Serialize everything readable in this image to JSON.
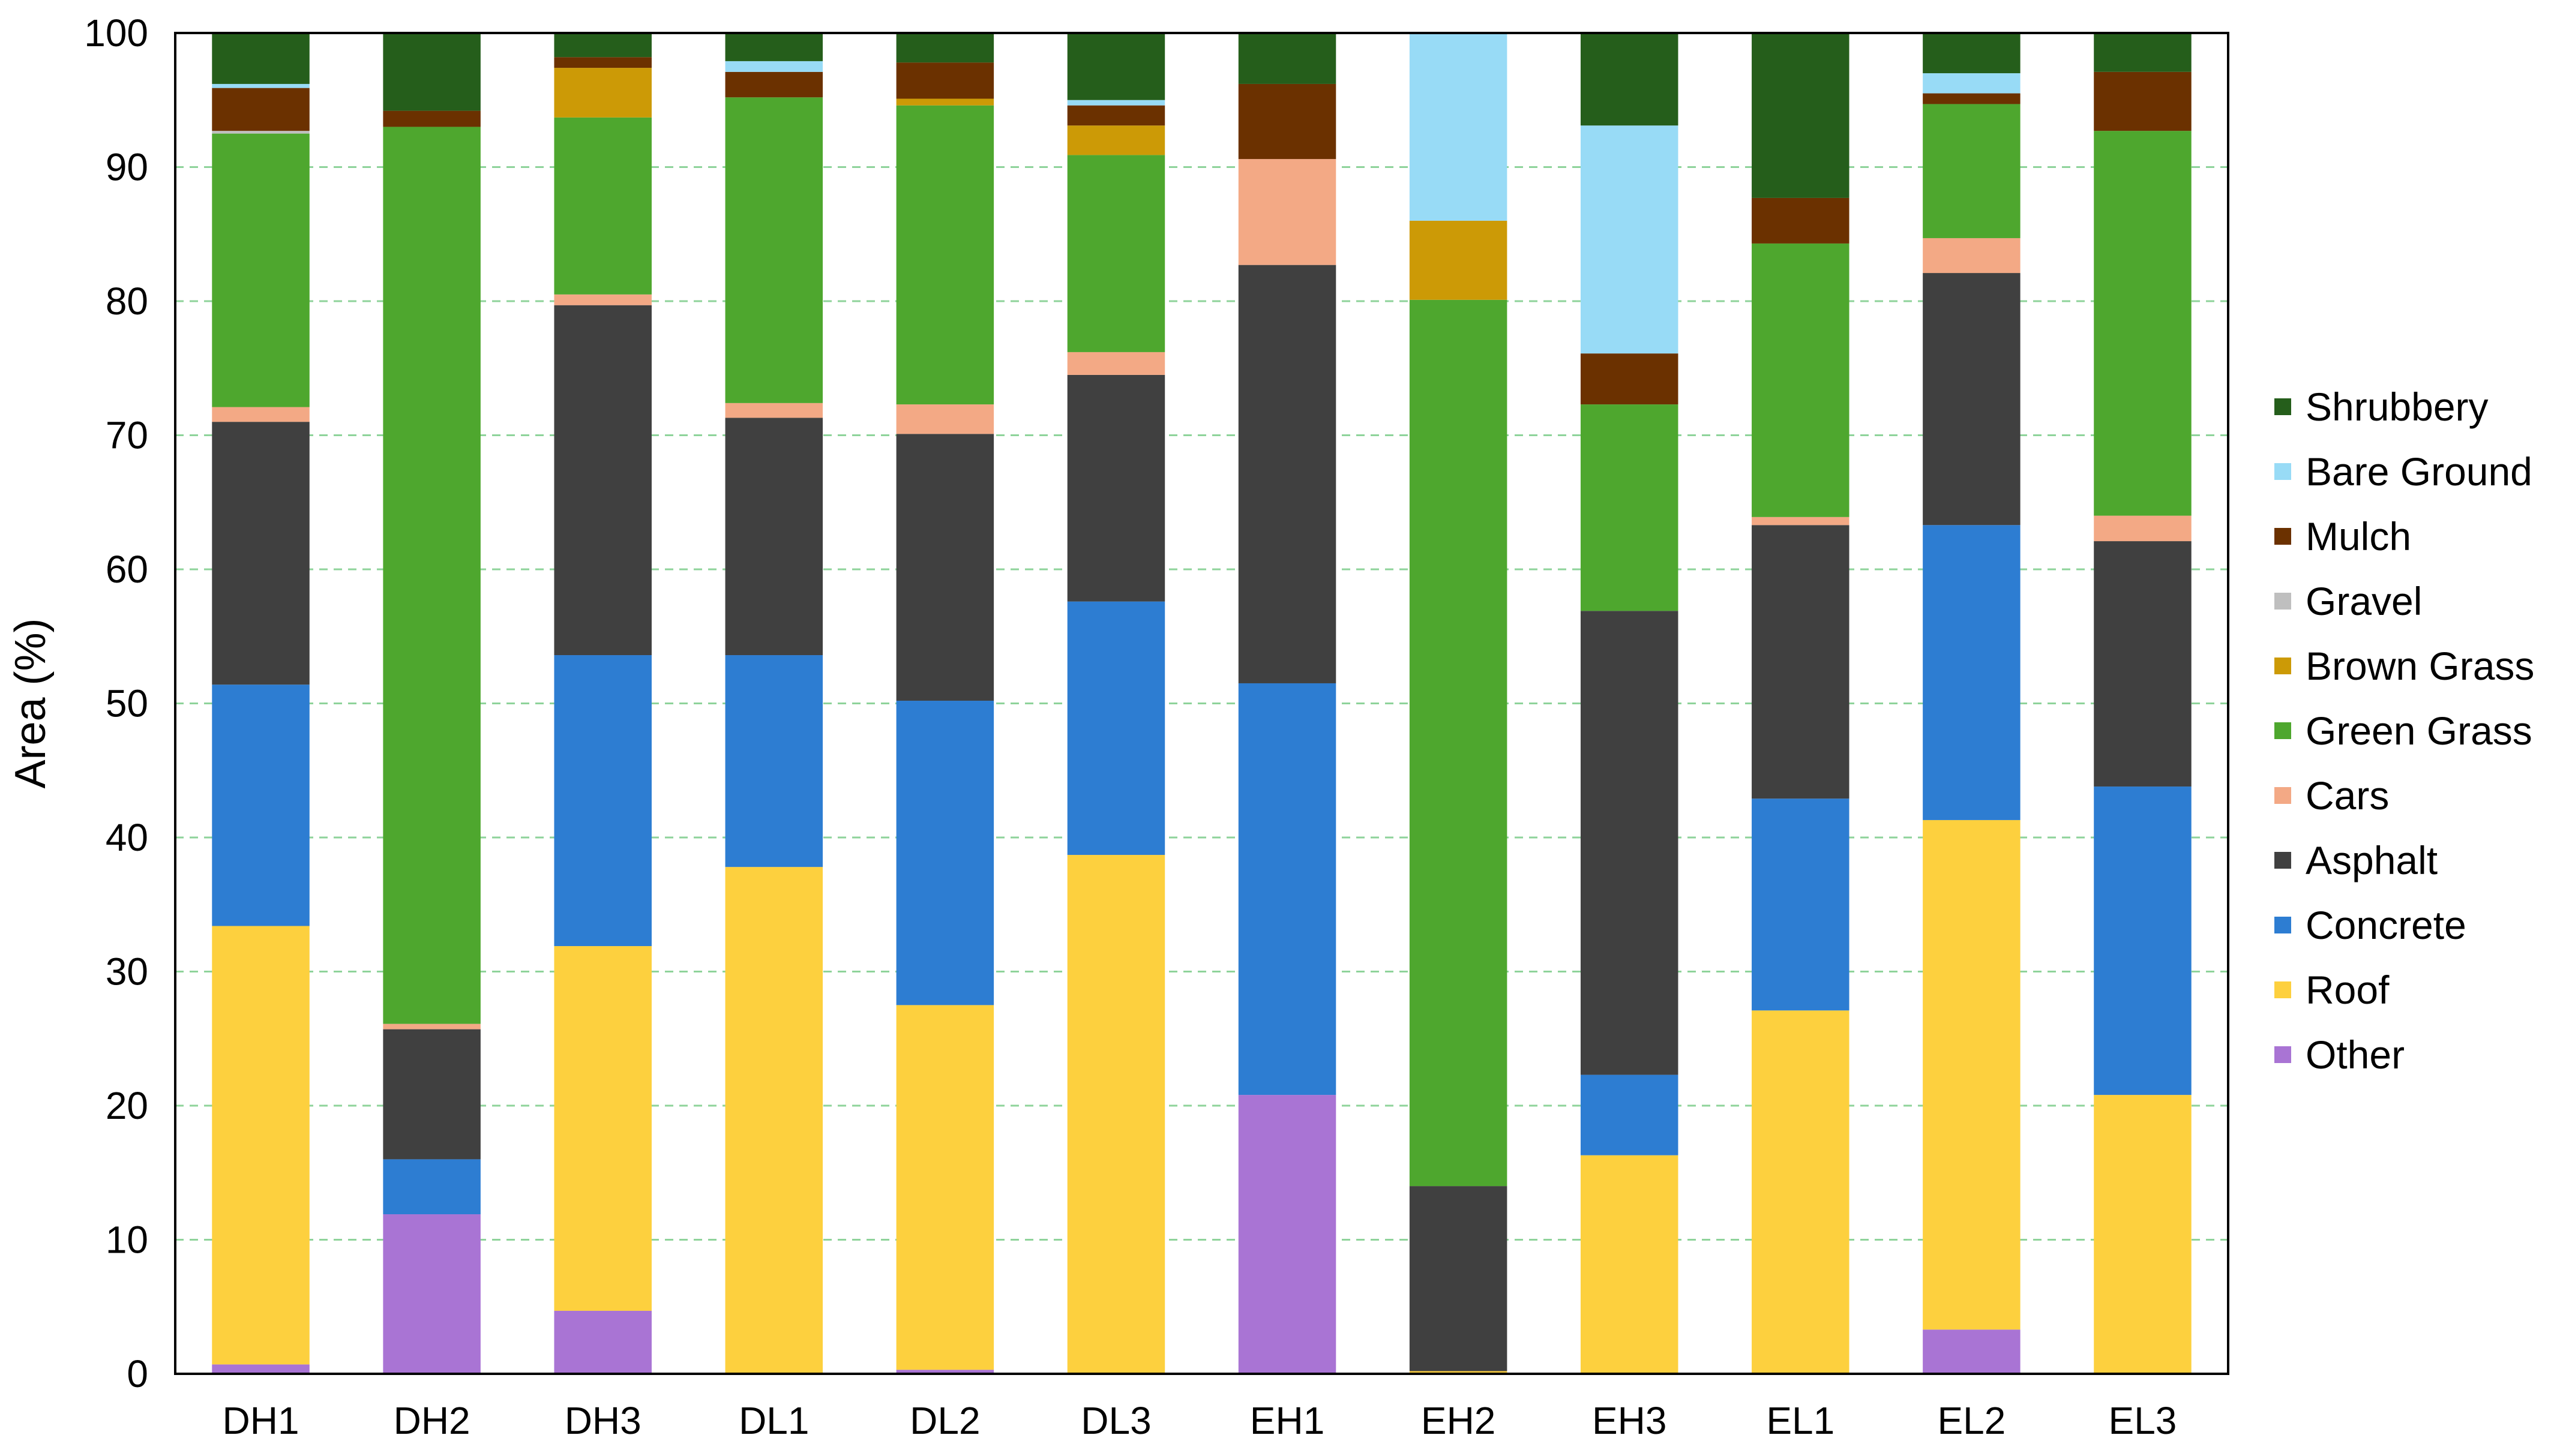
{
  "chart_data": {
    "type": "bar",
    "stacked": true,
    "title": "",
    "xlabel": "",
    "ylabel": "Area (%)",
    "ylim": [
      0,
      100
    ],
    "yticks": [
      0,
      10,
      20,
      30,
      40,
      50,
      60,
      70,
      80,
      90,
      100
    ],
    "grid": "horizontal dashed",
    "legend_position": "right",
    "categories": [
      "DH1",
      "DH2",
      "DH3",
      "DL1",
      "DL2",
      "DL3",
      "EH1",
      "EH2",
      "EH3",
      "EL1",
      "EL2",
      "EL3"
    ],
    "series": [
      {
        "name": "Other",
        "color": "#a974d4",
        "values": [
          0.7,
          11.9,
          4.7,
          0,
          0.3,
          0,
          20.8,
          0,
          0,
          0,
          3.3,
          0
        ]
      },
      {
        "name": "Roof",
        "color": "#fdd03e",
        "values": [
          32.7,
          0,
          27.2,
          37.8,
          27.2,
          38.7,
          0,
          0.2,
          16.3,
          27.1,
          38.0,
          20.8
        ]
      },
      {
        "name": "Concrete",
        "color": "#2d7dd2",
        "values": [
          18.0,
          4.1,
          21.7,
          15.8,
          22.7,
          18.9,
          30.7,
          0,
          6.0,
          15.8,
          22.0,
          23.0
        ]
      },
      {
        "name": "Asphalt",
        "color": "#404040",
        "values": [
          19.6,
          9.7,
          26.1,
          17.7,
          19.9,
          16.9,
          31.2,
          13.8,
          34.6,
          20.4,
          18.8,
          18.3
        ]
      },
      {
        "name": "Cars",
        "color": "#f3a985",
        "values": [
          1.1,
          0.4,
          0.8,
          1.1,
          2.2,
          1.7,
          7.9,
          0,
          0,
          0.6,
          2.6,
          1.9
        ]
      },
      {
        "name": "Green Grass",
        "color": "#4ea72e",
        "values": [
          20.4,
          66.9,
          13.2,
          22.8,
          22.3,
          14.7,
          0,
          66.1,
          15.4,
          20.4,
          10.0,
          28.7
        ]
      },
      {
        "name": "Brown Grass",
        "color": "#cc9a06",
        "values": [
          0,
          0,
          3.7,
          0,
          0.5,
          2.2,
          0,
          5.9,
          0,
          0,
          0,
          0
        ]
      },
      {
        "name": "Gravel",
        "color": "#bfbfbf",
        "values": [
          0.2,
          0,
          0,
          0,
          0,
          0,
          0,
          0,
          0,
          0,
          0,
          0
        ]
      },
      {
        "name": "Mulch",
        "color": "#6b3100",
        "values": [
          3.2,
          1.2,
          0.8,
          1.9,
          2.7,
          1.5,
          5.6,
          0,
          3.8,
          3.4,
          0.8,
          4.4
        ]
      },
      {
        "name": "Bare Ground",
        "color": "#98dbf6",
        "values": [
          0.3,
          0,
          0,
          0.8,
          0,
          0.4,
          0,
          14.0,
          17.0,
          0,
          1.5,
          0
        ]
      },
      {
        "name": "Shrubbery",
        "color": "#255e1b",
        "values": [
          3.8,
          5.8,
          1.8,
          2.1,
          2.2,
          5.0,
          3.8,
          0,
          6.9,
          12.3,
          3.0,
          2.9
        ]
      }
    ],
    "legend_order": [
      "Shrubbery",
      "Bare Ground",
      "Mulch",
      "Gravel",
      "Brown Grass",
      "Green Grass",
      "Cars",
      "Asphalt",
      "Concrete",
      "Roof",
      "Other"
    ]
  }
}
